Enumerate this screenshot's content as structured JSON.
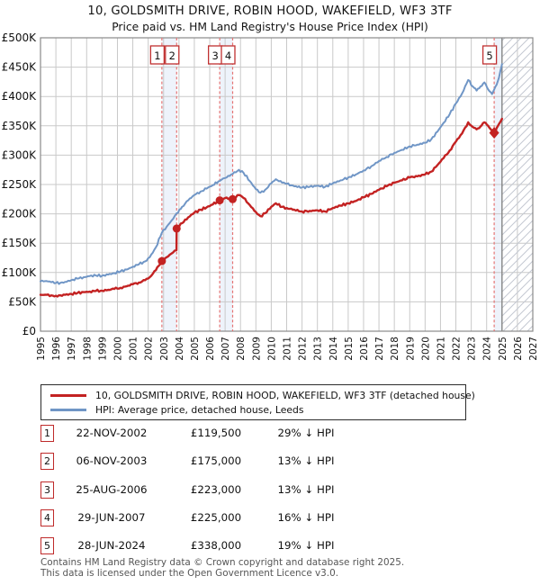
{
  "header": {
    "title": "10, GOLDSMITH DRIVE, ROBIN HOOD, WAKEFIELD, WF3 3TF",
    "subtitle": "Price paid vs. HM Land Registry's House Price Index (HPI)"
  },
  "footer": {
    "line1": "Contains HM Land Registry data © Crown copyright and database right 2025.",
    "line2": "This data is licensed under the Open Government Licence v3.0."
  },
  "chart_data": {
    "type": "line",
    "title": "10, GOLDSMITH DRIVE, ROBIN HOOD, WAKEFIELD, WF3 3TF",
    "subtitle": "Price paid vs. HM Land Registry's House Price Index (HPI)",
    "xlim": [
      1995,
      2027
    ],
    "ylim": [
      0,
      500000
    ],
    "ytick_step": 50000,
    "ytick_labels": [
      "£0",
      "£50K",
      "£100K",
      "£150K",
      "£200K",
      "£250K",
      "£300K",
      "£350K",
      "£400K",
      "£450K",
      "£500K"
    ],
    "xtick_years": [
      1995,
      1996,
      1997,
      1998,
      1999,
      2000,
      2001,
      2002,
      2003,
      2004,
      2005,
      2006,
      2007,
      2008,
      2009,
      2010,
      2011,
      2012,
      2013,
      2014,
      2015,
      2016,
      2017,
      2018,
      2019,
      2020,
      2021,
      2022,
      2023,
      2024,
      2025,
      2026,
      2027
    ],
    "grid": true,
    "legend_position": "below",
    "future_hatch_start": 2025,
    "colors": {
      "price_paid": "#c32222",
      "hpi": "#7096c6",
      "sale_dashed": "#e57373",
      "sale_band": "#eef3fb",
      "gridline": "#c9c9c9",
      "plot_border": "#8a8a8a",
      "hatch": "#c4c9d2",
      "marker_box_border": "#c03030"
    },
    "bands": [
      [
        2002.89,
        2003.85
      ],
      [
        2006.65,
        2007.49
      ],
      [
        2024.49,
        2025.0
      ]
    ],
    "series": [
      {
        "name": "10, GOLDSMITH DRIVE, ROBIN HOOD, WAKEFIELD, WF3 3TF (detached house)",
        "color": "#c32222",
        "width": 2.4,
        "points": [
          [
            1995.0,
            62000
          ],
          [
            1995.4,
            62000
          ],
          [
            1995.7,
            61000
          ],
          [
            1996.0,
            60500
          ],
          [
            1996.3,
            61000
          ],
          [
            1996.6,
            62000
          ],
          [
            1997.0,
            63500
          ],
          [
            1997.4,
            65000
          ],
          [
            1997.8,
            66500
          ],
          [
            1998.2,
            67500
          ],
          [
            1998.6,
            68500
          ],
          [
            1999.0,
            69000
          ],
          [
            1999.4,
            70500
          ],
          [
            1999.8,
            72000
          ],
          [
            2000.2,
            74000
          ],
          [
            2000.6,
            76500
          ],
          [
            2001.0,
            80000
          ],
          [
            2001.4,
            83000
          ],
          [
            2001.8,
            87000
          ],
          [
            2002.1,
            92000
          ],
          [
            2002.5,
            104000
          ],
          [
            2002.89,
            119500
          ],
          [
            2003.2,
            126000
          ],
          [
            2003.5,
            132000
          ],
          [
            2003.84,
            138000
          ],
          [
            2003.85,
            175000
          ],
          [
            2004.2,
            184000
          ],
          [
            2004.6,
            194000
          ],
          [
            2005.0,
            202000
          ],
          [
            2005.4,
            207000
          ],
          [
            2005.8,
            211000
          ],
          [
            2006.2,
            216000
          ],
          [
            2006.65,
            223000
          ],
          [
            2007.0,
            227000
          ],
          [
            2007.49,
            225000
          ],
          [
            2007.9,
            232000
          ],
          [
            2008.2,
            227000
          ],
          [
            2008.6,
            215000
          ],
          [
            2009.0,
            203000
          ],
          [
            2009.3,
            196000
          ],
          [
            2009.6,
            201000
          ],
          [
            2010.0,
            212000
          ],
          [
            2010.3,
            218000
          ],
          [
            2010.7,
            212000
          ],
          [
            2011.0,
            210000
          ],
          [
            2011.5,
            207000
          ],
          [
            2012.0,
            204000
          ],
          [
            2012.5,
            205000
          ],
          [
            2013.0,
            206000
          ],
          [
            2013.5,
            204000
          ],
          [
            2014.0,
            210000
          ],
          [
            2014.5,
            214000
          ],
          [
            2015.0,
            218000
          ],
          [
            2015.5,
            222000
          ],
          [
            2016.0,
            228000
          ],
          [
            2016.5,
            234000
          ],
          [
            2017.0,
            241000
          ],
          [
            2017.5,
            247000
          ],
          [
            2018.0,
            253000
          ],
          [
            2018.5,
            257000
          ],
          [
            2019.0,
            262000
          ],
          [
            2019.5,
            264000
          ],
          [
            2020.0,
            267000
          ],
          [
            2020.4,
            272000
          ],
          [
            2020.8,
            283000
          ],
          [
            2021.2,
            295000
          ],
          [
            2021.6,
            308000
          ],
          [
            2022.0,
            323000
          ],
          [
            2022.4,
            337000
          ],
          [
            2022.8,
            356000
          ],
          [
            2023.1,
            348000
          ],
          [
            2023.35,
            344000
          ],
          [
            2023.6,
            349000
          ],
          [
            2023.85,
            356000
          ],
          [
            2024.1,
            350000
          ],
          [
            2024.35,
            342000
          ],
          [
            2024.49,
            338000
          ],
          [
            2024.65,
            346000
          ],
          [
            2024.8,
            353000
          ],
          [
            2025.0,
            362000
          ]
        ]
      },
      {
        "name": "HPI: Average price, detached house, Leeds",
        "color": "#7096c6",
        "width": 2.0,
        "points": [
          [
            1995.0,
            85000
          ],
          [
            1995.4,
            85500
          ],
          [
            1995.7,
            83500
          ],
          [
            1996.0,
            82000
          ],
          [
            1996.3,
            82500
          ],
          [
            1996.6,
            84000
          ],
          [
            1997.0,
            87000
          ],
          [
            1997.4,
            89500
          ],
          [
            1997.8,
            92000
          ],
          [
            1998.2,
            94000
          ],
          [
            1998.6,
            95000
          ],
          [
            1999.0,
            94500
          ],
          [
            1999.4,
            96500
          ],
          [
            1999.8,
            99000
          ],
          [
            2000.2,
            102000
          ],
          [
            2000.6,
            105000
          ],
          [
            2001.0,
            110000
          ],
          [
            2001.4,
            114000
          ],
          [
            2001.8,
            119000
          ],
          [
            2002.1,
            126000
          ],
          [
            2002.5,
            143000
          ],
          [
            2002.89,
            168000
          ],
          [
            2003.2,
            178000
          ],
          [
            2003.5,
            188000
          ],
          [
            2003.85,
            201000
          ],
          [
            2004.2,
            212000
          ],
          [
            2004.6,
            223000
          ],
          [
            2005.0,
            232000
          ],
          [
            2005.4,
            238000
          ],
          [
            2005.8,
            243000
          ],
          [
            2006.2,
            249000
          ],
          [
            2006.65,
            256000
          ],
          [
            2007.0,
            261000
          ],
          [
            2007.49,
            268000
          ],
          [
            2007.9,
            275000
          ],
          [
            2008.2,
            270000
          ],
          [
            2008.6,
            256000
          ],
          [
            2009.0,
            242000
          ],
          [
            2009.3,
            236000
          ],
          [
            2009.6,
            241000
          ],
          [
            2010.0,
            252000
          ],
          [
            2010.3,
            259000
          ],
          [
            2010.7,
            253000
          ],
          [
            2011.0,
            251000
          ],
          [
            2011.5,
            247000
          ],
          [
            2012.0,
            245000
          ],
          [
            2012.5,
            246000
          ],
          [
            2013.0,
            248000
          ],
          [
            2013.5,
            246000
          ],
          [
            2014.0,
            252000
          ],
          [
            2014.5,
            257000
          ],
          [
            2015.0,
            262000
          ],
          [
            2015.5,
            267000
          ],
          [
            2016.0,
            274000
          ],
          [
            2016.5,
            281000
          ],
          [
            2017.0,
            290000
          ],
          [
            2017.5,
            297000
          ],
          [
            2018.0,
            304000
          ],
          [
            2018.5,
            309000
          ],
          [
            2019.0,
            315000
          ],
          [
            2019.5,
            318000
          ],
          [
            2020.0,
            321000
          ],
          [
            2020.4,
            327000
          ],
          [
            2020.8,
            340000
          ],
          [
            2021.2,
            355000
          ],
          [
            2021.6,
            370000
          ],
          [
            2022.0,
            388000
          ],
          [
            2022.4,
            405000
          ],
          [
            2022.8,
            428000
          ],
          [
            2023.1,
            417000
          ],
          [
            2023.35,
            410000
          ],
          [
            2023.6,
            417000
          ],
          [
            2023.85,
            424000
          ],
          [
            2024.1,
            412000
          ],
          [
            2024.35,
            404000
          ],
          [
            2024.49,
            412000
          ],
          [
            2024.65,
            420000
          ],
          [
            2024.8,
            432000
          ],
          [
            2025.0,
            455000
          ]
        ]
      }
    ],
    "sales": [
      {
        "n": "1",
        "x": 2002.89,
        "price": 119500,
        "marker": "circle",
        "date_label": "22-NOV-2002",
        "price_label": "£119,500",
        "pct_label": "29% ↓ HPI"
      },
      {
        "n": "2",
        "x": 2003.85,
        "price": 175000,
        "marker": "circle",
        "date_label": "06-NOV-2003",
        "price_label": "£175,000",
        "pct_label": "13% ↓ HPI"
      },
      {
        "n": "3",
        "x": 2006.65,
        "price": 223000,
        "marker": "circle",
        "date_label": "25-AUG-2006",
        "price_label": "£223,000",
        "pct_label": "13% ↓ HPI"
      },
      {
        "n": "4",
        "x": 2007.49,
        "price": 225000,
        "marker": "circle",
        "date_label": "29-JUN-2007",
        "price_label": "£225,000",
        "pct_label": "16% ↓ HPI"
      },
      {
        "n": "5",
        "x": 2024.49,
        "price": 338000,
        "marker": "diamond",
        "date_label": "28-JUN-2024",
        "price_label": "£338,000",
        "pct_label": "19% ↓ HPI"
      }
    ]
  }
}
